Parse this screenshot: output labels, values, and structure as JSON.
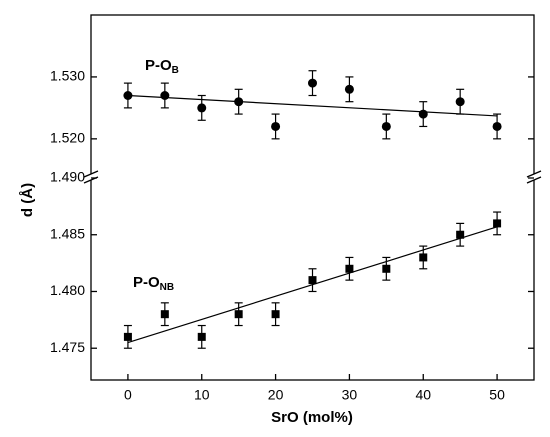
{
  "chart_data": [
    {
      "type": "scatter",
      "ylabel": "d (Å)",
      "annotation": {
        "text": "P-O",
        "sub": "B"
      },
      "x": [
        0,
        5,
        10,
        15,
        20,
        25,
        30,
        35,
        40,
        45,
        50
      ],
      "series": [
        {
          "name": "P-OB",
          "color": "#000000",
          "marker": "circle",
          "values": [
            1.527,
            1.527,
            1.525,
            1.526,
            1.522,
            1.529,
            1.528,
            1.522,
            1.524,
            1.526,
            1.522
          ],
          "errors": [
            0.002,
            0.002,
            0.002,
            0.002,
            0.002,
            0.002,
            0.002,
            0.002,
            0.002,
            0.002,
            0.002
          ]
        }
      ],
      "fit": {
        "x": [
          0,
          50
        ],
        "y": [
          1.527,
          1.5237
        ]
      },
      "xlim": [
        -5,
        55
      ],
      "ylim": [
        1.514,
        1.54
      ],
      "yticks": [
        {
          "value": 1.52,
          "label": "1.520"
        },
        {
          "value": 1.53,
          "label": "1.530"
        }
      ]
    },
    {
      "type": "scatter",
      "xlabel": "SrO (mol%)",
      "annotation": {
        "text": "P-O",
        "sub": "NB"
      },
      "x": [
        0,
        5,
        10,
        15,
        20,
        25,
        30,
        35,
        40,
        45,
        50
      ],
      "series": [
        {
          "name": "P-ONB",
          "color": "#000000",
          "marker": "square",
          "values": [
            1.476,
            1.478,
            1.476,
            1.478,
            1.478,
            1.481,
            1.482,
            1.482,
            1.483,
            1.485,
            1.486
          ],
          "errors": [
            0.001,
            0.001,
            0.001,
            0.001,
            0.001,
            0.001,
            0.001,
            0.001,
            0.001,
            0.001,
            0.001
          ]
        }
      ],
      "fit": {
        "x": [
          0,
          50
        ],
        "y": [
          1.4755,
          1.4857
        ]
      },
      "xlim": [
        -5,
        55
      ],
      "ylim": [
        1.4722,
        1.49
      ],
      "xticks": [
        0,
        10,
        20,
        30,
        40,
        50
      ],
      "yticks": [
        1.475,
        {
          "value": 1.48,
          "label": "1.480"
        },
        1.485,
        {
          "value": 1.49,
          "label": "1.490"
        }
      ]
    }
  ]
}
